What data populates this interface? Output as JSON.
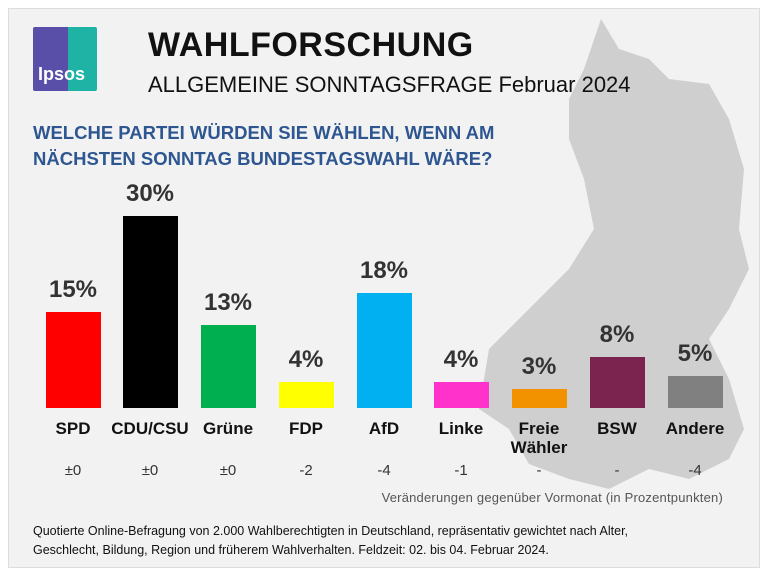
{
  "header": {
    "logo_text": "Ipsos",
    "title": "WAHLFORSCHUNG",
    "subtitle": "ALLGEMEINE SONNTAGSFRAGE Februar 2024"
  },
  "question": "WELCHE PARTEI WÜRDEN SIE WÄHLEN, WENN AM NÄCHSTEN SONNTAG BUNDESTAGSWAHL WÄRE?",
  "chart_data": {
    "type": "bar",
    "categories": [
      "SPD",
      "CDU/CSU",
      "Grüne",
      "FDP",
      "AfD",
      "Linke",
      "Freie Wähler",
      "BSW",
      "Andere"
    ],
    "values": [
      15,
      30,
      13,
      4,
      18,
      4,
      3,
      8,
      5
    ],
    "value_labels": [
      "15%",
      "30%",
      "13%",
      "4%",
      "18%",
      "4%",
      "3%",
      "8%",
      "5%"
    ],
    "colors": [
      "#ff0000",
      "#000000",
      "#00b050",
      "#ffff00",
      "#00b0f0",
      "#ff33cc",
      "#f39200",
      "#7b2450",
      "#808080"
    ],
    "changes": [
      "±0",
      "±0",
      "±0",
      "-2",
      "-4",
      "-1",
      "-",
      "-",
      "-4"
    ],
    "changes_note": "Veränderungen gegenüber Vormonat (in Prozentpunkten)",
    "grid": false
  },
  "footer": "Quotierte Online-Befragung von 2.000 Wahlberechtigten in Deutschland, repräsentativ gewichtet nach Alter, Geschlecht, Bildung, Region und früherem Wahlverhalten. Feldzeit: 02. bis 04. Februar 2024."
}
